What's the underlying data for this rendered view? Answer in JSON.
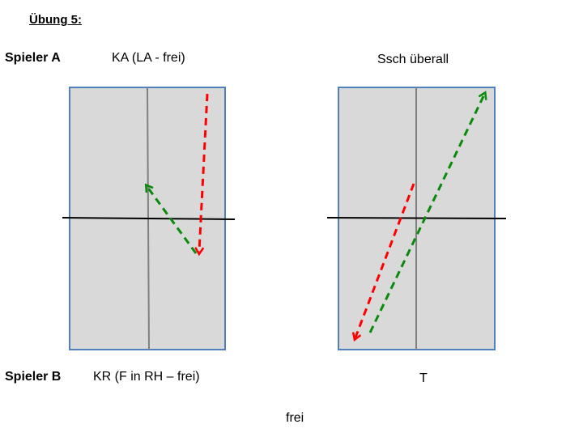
{
  "title": "Übung 5:",
  "player_a": "Spieler A",
  "player_b": "Spieler B",
  "left_court": {
    "top_label": "KA (LA - frei)",
    "bottom_label": "KR (F in RH – frei)"
  },
  "right_court": {
    "top_label": "Ssch überall",
    "bottom_label": "T"
  },
  "footer": "frei",
  "colors": {
    "court_fill": "#d9d9d9",
    "court_border": "#4f81bd",
    "center_line": "#808080",
    "net": "#000000",
    "arrow_red": "#ff0000",
    "arrow_green": "#0a8a0a"
  }
}
